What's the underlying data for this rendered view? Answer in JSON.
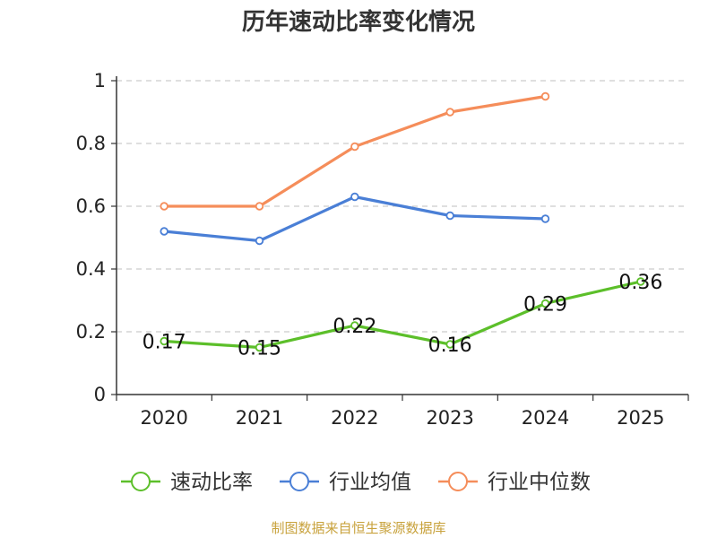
{
  "chart_data": {
    "type": "line",
    "title": "历年速动比率变化情况",
    "categories": [
      "2020",
      "2021",
      "2022",
      "2023",
      "2024",
      "2025"
    ],
    "ylim": [
      0,
      1
    ],
    "yticks": [
      0,
      0.2,
      0.4,
      0.6,
      0.8,
      1
    ],
    "ytick_labels": [
      "0",
      "0.2",
      "0.4",
      "0.6",
      "0.8",
      "1"
    ],
    "grid": true,
    "legend_position": "bottom",
    "series": [
      {
        "name": "速动比率",
        "color": "#5cbf2a",
        "values": [
          0.17,
          0.15,
          0.22,
          0.16,
          0.29,
          0.36
        ],
        "data_labels": [
          "0.17",
          "0.15",
          "0.22",
          "0.16",
          "0.29",
          "0.36"
        ]
      },
      {
        "name": "行业均值",
        "color": "#4a7fd6",
        "values": [
          0.52,
          0.49,
          0.63,
          0.57,
          0.56,
          null
        ]
      },
      {
        "name": "行业中位数",
        "color": "#f58d5a",
        "values": [
          0.6,
          0.6,
          0.79,
          0.9,
          0.95,
          null
        ]
      }
    ]
  },
  "footer": {
    "source": "制图数据来自恒生聚源数据库"
  }
}
